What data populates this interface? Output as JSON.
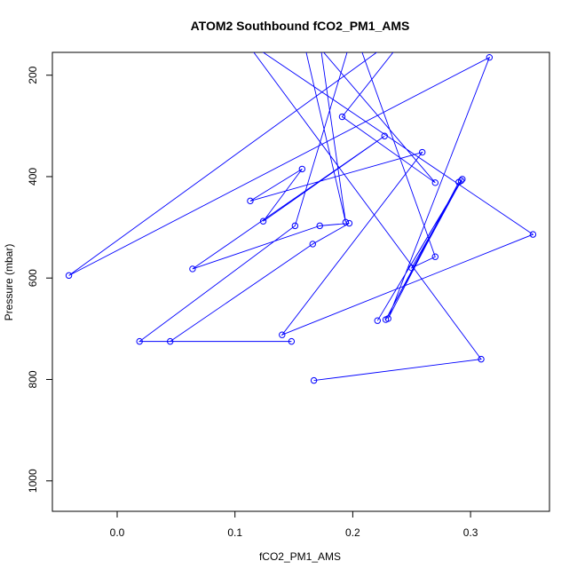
{
  "chart_data": {
    "type": "line",
    "title": "ATOM2 Southbound fCO2_PM1_AMS",
    "xlabel": "fCO2_PM1_AMS",
    "ylabel": "Pressure (mbar)",
    "xlim": [
      -0.055,
      0.367
    ],
    "ylim": [
      1060,
      155
    ],
    "y_reversed": true,
    "x_ticks": [
      0.0,
      0.1,
      0.2,
      0.3
    ],
    "x_tick_labels": [
      "0.0",
      "0.1",
      "0.2",
      "0.3"
    ],
    "y_ticks": [
      200,
      400,
      600,
      800,
      1000
    ],
    "y_tick_labels": [
      "200",
      "400",
      "600",
      "800",
      "1000"
    ],
    "grid": false,
    "series": [
      {
        "color": "#0000ff",
        "marker": "open-circle",
        "points": [
          {
            "x": 0.167,
            "y": 802
          },
          {
            "x": 0.309,
            "y": 760
          },
          {
            "x": 0.108,
            "y": 130
          },
          {
            "x": 0.353,
            "y": 514
          },
          {
            "x": 0.14,
            "y": 712
          },
          {
            "x": 0.259,
            "y": 352
          },
          {
            "x": 0.113,
            "y": 448
          },
          {
            "x": 0.157,
            "y": 385
          },
          {
            "x": 0.124,
            "y": 488
          },
          {
            "x": 0.227,
            "y": 320
          },
          {
            "x": 0.064,
            "y": 582
          },
          {
            "x": 0.172,
            "y": 497
          },
          {
            "x": 0.197,
            "y": 492
          },
          {
            "x": 0.166,
            "y": 533
          },
          {
            "x": 0.045,
            "y": 725
          },
          {
            "x": 0.148,
            "y": 725
          },
          {
            "x": 0.019,
            "y": 725
          },
          {
            "x": 0.151,
            "y": 497
          },
          {
            "x": 0.201,
            "y": 110
          },
          {
            "x": 0.27,
            "y": 558
          },
          {
            "x": 0.25,
            "y": 580
          },
          {
            "x": 0.293,
            "y": 405
          },
          {
            "x": 0.221,
            "y": 684
          },
          {
            "x": 0.292,
            "y": 408
          },
          {
            "x": 0.228,
            "y": 682
          },
          {
            "x": 0.29,
            "y": 411
          },
          {
            "x": 0.23,
            "y": 680
          },
          {
            "x": 0.316,
            "y": 165
          },
          {
            "x": -0.041,
            "y": 595
          },
          {
            "x": 0.253,
            "y": 100
          },
          {
            "x": 0.191,
            "y": 282
          },
          {
            "x": 0.27,
            "y": 412
          },
          {
            "x": 0.155,
            "y": 100
          },
          {
            "x": 0.194,
            "y": 490
          },
          {
            "x": 0.17,
            "y": 100
          }
        ]
      }
    ]
  }
}
